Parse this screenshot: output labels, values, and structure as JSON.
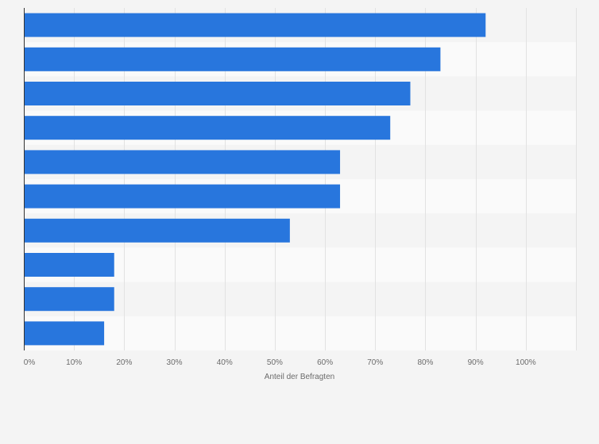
{
  "chart_data": {
    "type": "bar",
    "orientation": "horizontal",
    "categories": [
      "",
      "",
      "",
      "",
      "",
      "",
      "",
      "",
      "",
      ""
    ],
    "values": [
      92,
      83,
      77,
      73,
      63,
      63,
      53,
      18,
      18,
      16
    ],
    "unit": "%",
    "xlim": [
      0,
      110
    ],
    "xticks": [
      0,
      10,
      20,
      30,
      40,
      50,
      60,
      70,
      80,
      90,
      100
    ],
    "tick_labels": [
      "0%",
      "10%",
      "20%",
      "30%",
      "40%",
      "50%",
      "60%",
      "70%",
      "80%",
      "90%",
      "100%"
    ],
    "title": "",
    "xlabel": "Anteil der Befragten",
    "ylabel": "",
    "grid": true,
    "bar_color": "#2876dd",
    "band_colors": [
      "#f4f4f4",
      "#fafafa"
    ]
  }
}
